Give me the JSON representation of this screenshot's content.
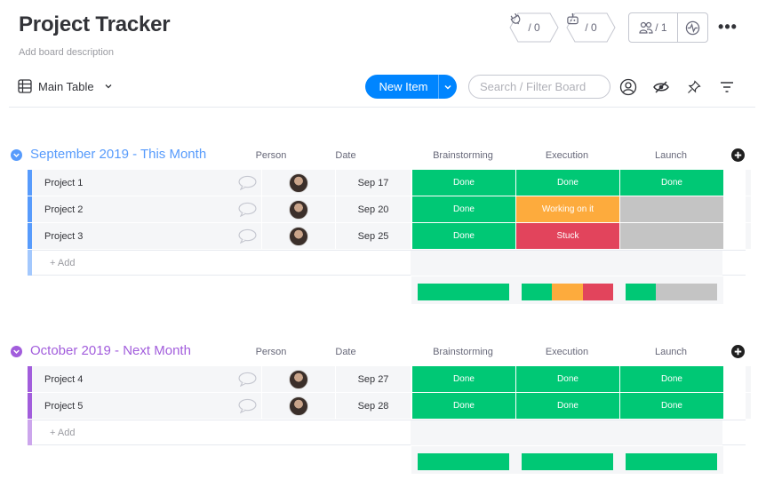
{
  "board": {
    "title": "Project Tracker",
    "description": "Add board description"
  },
  "header": {
    "integrations_count": "/ 0",
    "automations_count": "/ 0",
    "members_count": "/ 1",
    "more_label": "•••"
  },
  "toolbar": {
    "view_label": "Main Table",
    "new_item_label": "New Item",
    "search_placeholder": "Search / Filter Board"
  },
  "columns": [
    "Person",
    "Date",
    "Brainstorming",
    "Execution",
    "Launch"
  ],
  "status_colors": {
    "done": "#00c875",
    "working": "#fdab3d",
    "stuck": "#e2445c",
    "empty": "#c4c4c4"
  },
  "groups": [
    {
      "title": "September 2019 - This Month",
      "color": "#579bfc",
      "add_label": "+ Add",
      "items": [
        {
          "name": "Project 1",
          "date": "Sep 17",
          "brainstorming": "Done",
          "execution": "Done",
          "launch": "Done"
        },
        {
          "name": "Project 2",
          "date": "Sep 20",
          "brainstorming": "Done",
          "execution": "Working on it",
          "launch": ""
        },
        {
          "name": "Project 3",
          "date": "Sep 25",
          "brainstorming": "Done",
          "execution": "Stuck",
          "launch": ""
        }
      ]
    },
    {
      "title": "October 2019 - Next Month",
      "color": "#a25ddc",
      "add_label": "+ Add",
      "items": [
        {
          "name": "Project 4",
          "date": "Sep 27",
          "brainstorming": "Done",
          "execution": "Done",
          "launch": "Done"
        },
        {
          "name": "Project 5",
          "date": "Sep 28",
          "brainstorming": "Done",
          "execution": "Done",
          "launch": "Done"
        }
      ]
    }
  ]
}
